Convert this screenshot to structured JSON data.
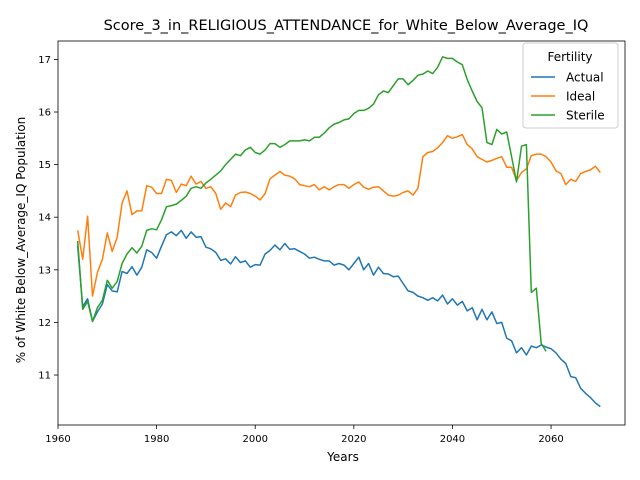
{
  "chart_data": {
    "type": "line",
    "title": "Score_3_in_RELIGIOUS_ATTENDANCE_for_White_Below_Average_IQ",
    "xlabel": "Years",
    "ylabel": "% of White Below_Average_IQ Population",
    "xlim": [
      1960,
      2075
    ],
    "ylim": [
      10.05,
      17.35
    ],
    "xticks": [
      1960,
      1980,
      2000,
      2020,
      2040,
      2060
    ],
    "yticks": [
      11,
      12,
      13,
      14,
      15,
      16,
      17
    ],
    "grid": false,
    "legend": {
      "title": "Fertility",
      "placement": "top-right"
    },
    "series": [
      {
        "name": "Actual",
        "color": "#1f77b4",
        "x": [
          1964,
          1965,
          1966,
          1967,
          1968,
          1969,
          1970,
          1971,
          1972,
          1973,
          1974,
          1975,
          1976,
          1977,
          1978,
          1979,
          1980,
          1981,
          1982,
          1983,
          1984,
          1985,
          1986,
          1987,
          1988,
          1989,
          1990,
          1991,
          1992,
          1993,
          1994,
          1995,
          1996,
          1997,
          1998,
          1999,
          2000,
          2001,
          2002,
          2003,
          2004,
          2005,
          2006,
          2007,
          2008,
          2009,
          2010,
          2011,
          2012,
          2013,
          2014,
          2015,
          2016,
          2017,
          2018,
          2019,
          2020,
          2021,
          2022,
          2023,
          2024,
          2025,
          2026,
          2027,
          2028,
          2029,
          2030,
          2031,
          2032,
          2033,
          2034,
          2035,
          2036,
          2037,
          2038,
          2039,
          2040,
          2041,
          2042,
          2043,
          2044,
          2045,
          2046,
          2047,
          2048,
          2049,
          2050,
          2051,
          2052,
          2053,
          2054,
          2055,
          2056,
          2057,
          2058,
          2059,
          2060,
          2061,
          2062,
          2063,
          2064,
          2065,
          2066,
          2067,
          2068,
          2069,
          2070
        ],
        "y": [
          13.45,
          12.3,
          12.45,
          12.02,
          12.2,
          12.35,
          12.72,
          12.6,
          12.58,
          12.97,
          12.93,
          13.06,
          12.9,
          13.05,
          13.38,
          13.33,
          13.22,
          13.45,
          13.67,
          13.72,
          13.65,
          13.75,
          13.6,
          13.72,
          13.62,
          13.63,
          13.43,
          13.4,
          13.33,
          13.18,
          13.21,
          13.11,
          13.25,
          13.14,
          13.17,
          13.05,
          13.1,
          13.09,
          13.3,
          13.37,
          13.47,
          13.38,
          13.5,
          13.39,
          13.4,
          13.35,
          13.3,
          13.22,
          13.24,
          13.2,
          13.17,
          13.17,
          13.09,
          13.12,
          13.09,
          13.0,
          13.12,
          13.24,
          13.0,
          13.12,
          12.9,
          13.05,
          12.93,
          12.92,
          12.87,
          12.88,
          12.74,
          12.6,
          12.57,
          12.5,
          12.47,
          12.42,
          12.47,
          12.41,
          12.52,
          12.35,
          12.45,
          12.33,
          12.4,
          12.22,
          12.28,
          12.05,
          12.25,
          12.05,
          12.2,
          11.98,
          12.0,
          11.7,
          11.65,
          11.42,
          11.52,
          11.38,
          11.55,
          11.52,
          11.57,
          11.53,
          11.5,
          11.42,
          11.3,
          11.22,
          10.97,
          10.95,
          10.75,
          10.65,
          10.57,
          10.47,
          10.4
        ]
      },
      {
        "name": "Ideal",
        "color": "#ff7f0e",
        "x": [
          1964,
          1965,
          1966,
          1967,
          1968,
          1969,
          1970,
          1971,
          1972,
          1973,
          1974,
          1975,
          1976,
          1977,
          1978,
          1979,
          1980,
          1981,
          1982,
          1983,
          1984,
          1985,
          1986,
          1987,
          1988,
          1989,
          1990,
          1991,
          1992,
          1993,
          1994,
          1995,
          1996,
          1997,
          1998,
          1999,
          2000,
          2001,
          2002,
          2003,
          2004,
          2005,
          2006,
          2007,
          2008,
          2009,
          2010,
          2011,
          2012,
          2013,
          2014,
          2015,
          2016,
          2017,
          2018,
          2019,
          2020,
          2021,
          2022,
          2023,
          2024,
          2025,
          2026,
          2027,
          2028,
          2029,
          2030,
          2031,
          2032,
          2033,
          2034,
          2035,
          2036,
          2037,
          2038,
          2039,
          2040,
          2041,
          2042,
          2043,
          2044,
          2045,
          2046,
          2047,
          2048,
          2049,
          2050,
          2051,
          2052,
          2053,
          2054,
          2055,
          2056,
          2057,
          2058,
          2059,
          2060,
          2061,
          2062,
          2063,
          2064,
          2065,
          2066,
          2067,
          2068,
          2069,
          2070
        ],
        "y": [
          13.75,
          13.2,
          14.02,
          12.5,
          12.95,
          13.2,
          13.7,
          13.35,
          13.62,
          14.27,
          14.5,
          14.05,
          14.12,
          14.12,
          14.6,
          14.57,
          14.45,
          14.45,
          14.72,
          14.7,
          14.47,
          14.63,
          14.6,
          14.78,
          14.63,
          14.68,
          14.55,
          14.58,
          14.45,
          14.15,
          14.27,
          14.2,
          14.42,
          14.47,
          14.48,
          14.45,
          14.4,
          14.33,
          14.45,
          14.73,
          14.8,
          14.87,
          14.8,
          14.78,
          14.73,
          14.62,
          14.6,
          14.58,
          14.62,
          14.52,
          14.58,
          14.52,
          14.58,
          14.62,
          14.62,
          14.55,
          14.62,
          14.67,
          14.57,
          14.53,
          14.57,
          14.58,
          14.5,
          14.42,
          14.4,
          14.42,
          14.47,
          14.5,
          14.42,
          14.55,
          15.15,
          15.23,
          15.25,
          15.32,
          15.42,
          15.55,
          15.5,
          15.53,
          15.57,
          15.38,
          15.3,
          15.15,
          15.1,
          15.05,
          15.08,
          15.12,
          15.15,
          14.95,
          14.95,
          14.7,
          14.85,
          14.92,
          15.17,
          15.2,
          15.2,
          15.15,
          15.05,
          14.88,
          14.83,
          14.62,
          14.72,
          14.68,
          14.83,
          14.87,
          14.9,
          14.97,
          14.85
        ]
      },
      {
        "name": "Sterile",
        "color": "#2ca02c",
        "x": [
          1964,
          1965,
          1966,
          1967,
          1968,
          1969,
          1970,
          1971,
          1972,
          1973,
          1974,
          1975,
          1976,
          1977,
          1978,
          1979,
          1980,
          1981,
          1982,
          1983,
          1984,
          1985,
          1986,
          1987,
          1988,
          1989,
          1990,
          1991,
          1992,
          1993,
          1994,
          1995,
          1996,
          1997,
          1998,
          1999,
          2000,
          2001,
          2002,
          2003,
          2004,
          2005,
          2006,
          2007,
          2008,
          2009,
          2010,
          2011,
          2012,
          2013,
          2014,
          2015,
          2016,
          2017,
          2018,
          2019,
          2020,
          2021,
          2022,
          2023,
          2024,
          2025,
          2026,
          2027,
          2028,
          2029,
          2030,
          2031,
          2032,
          2033,
          2034,
          2035,
          2036,
          2037,
          2038,
          2039,
          2040,
          2041,
          2042,
          2043,
          2044,
          2045,
          2046,
          2047,
          2048,
          2049,
          2050,
          2051,
          2052,
          2053,
          2054,
          2055,
          2056,
          2057,
          2058,
          2059
        ],
        "y": [
          13.55,
          12.25,
          12.4,
          12.02,
          12.28,
          12.42,
          12.8,
          12.65,
          12.78,
          13.12,
          13.3,
          13.42,
          13.32,
          13.45,
          13.75,
          13.78,
          13.76,
          13.95,
          14.2,
          14.22,
          14.25,
          14.32,
          14.4,
          14.55,
          14.58,
          14.55,
          14.65,
          14.72,
          14.8,
          14.88,
          15.0,
          15.1,
          15.2,
          15.17,
          15.28,
          15.33,
          15.23,
          15.2,
          15.28,
          15.4,
          15.4,
          15.33,
          15.38,
          15.45,
          15.45,
          15.45,
          15.47,
          15.45,
          15.52,
          15.52,
          15.6,
          15.7,
          15.77,
          15.8,
          15.85,
          15.87,
          15.97,
          16.03,
          16.03,
          16.07,
          16.15,
          16.33,
          16.4,
          16.37,
          16.5,
          16.63,
          16.63,
          16.52,
          16.6,
          16.7,
          16.72,
          16.78,
          16.73,
          16.85,
          17.05,
          17.02,
          17.02,
          16.95,
          16.9,
          16.62,
          16.4,
          16.2,
          16.08,
          15.42,
          15.38,
          15.67,
          15.58,
          15.62,
          15.15,
          14.67,
          15.35,
          15.38,
          12.57,
          12.65,
          11.6,
          11.45
        ]
      }
    ]
  }
}
